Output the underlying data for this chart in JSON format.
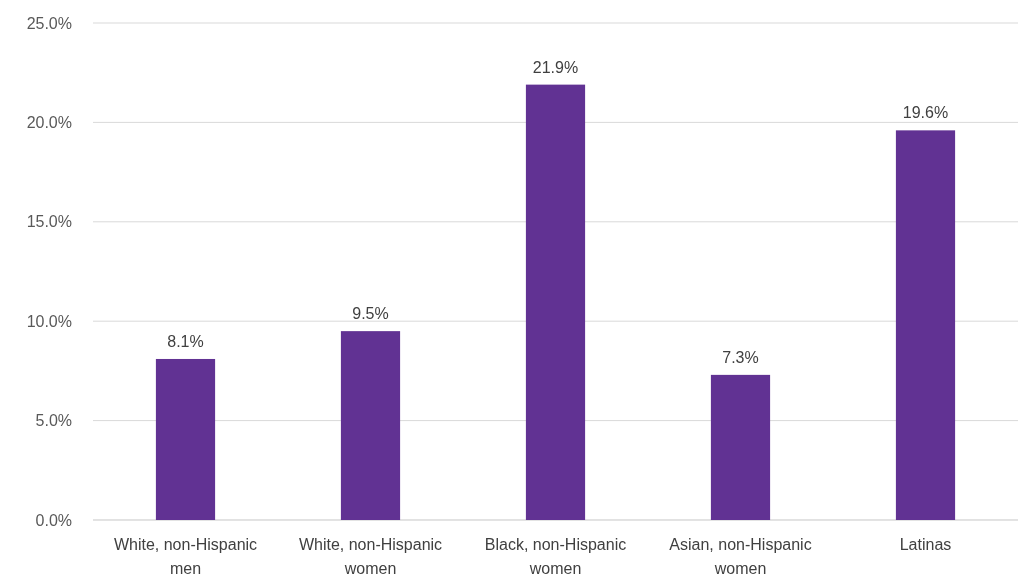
{
  "chart_data": {
    "type": "bar",
    "categories": [
      "White, non-Hispanic men",
      "White, non-Hispanic women",
      "Black, non-Hispanic women",
      "Asian, non-Hispanic women",
      "Latinas"
    ],
    "values": [
      8.1,
      9.5,
      21.9,
      7.3,
      19.6
    ],
    "value_labels": [
      "8.1%",
      "9.5%",
      "21.9%",
      "7.3%",
      "19.6%"
    ],
    "color": "#613293",
    "ylim": [
      0,
      25
    ],
    "yticks": [
      {
        "value": 0,
        "label": "0.0%"
      },
      {
        "value": 5,
        "label": "5.0%"
      },
      {
        "value": 10,
        "label": "10.0%"
      },
      {
        "value": 15,
        "label": "15.0%"
      },
      {
        "value": 20,
        "label": "20.0%"
      },
      {
        "value": 25,
        "label": "25.0%"
      }
    ],
    "grid": "y"
  }
}
